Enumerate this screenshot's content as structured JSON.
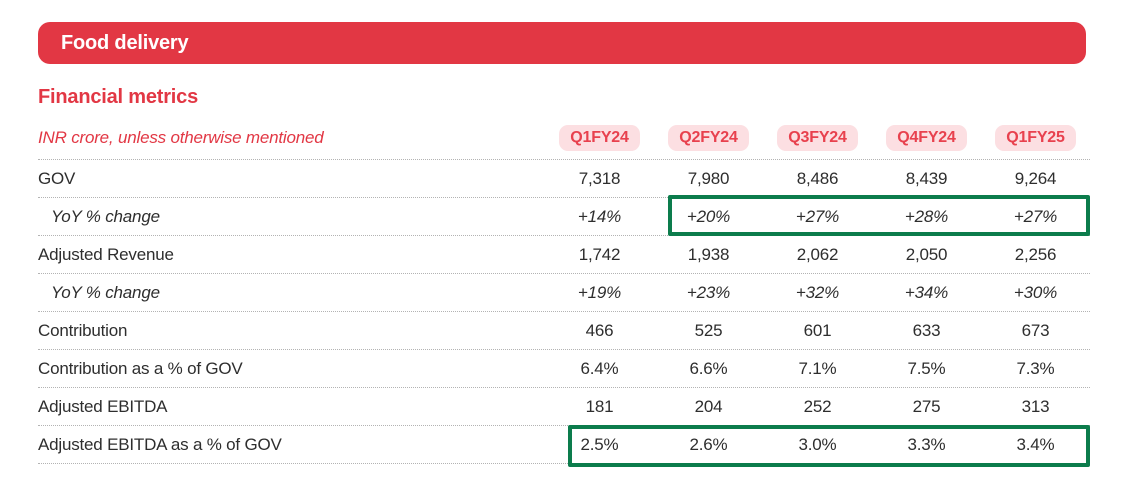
{
  "banner": {
    "title": "Food delivery"
  },
  "section": {
    "title": "Financial metrics",
    "subtitle": "INR crore, unless otherwise mentioned"
  },
  "table": {
    "columns": [
      "Q1FY24",
      "Q2FY24",
      "Q3FY24",
      "Q4FY24",
      "Q1FY25"
    ],
    "rows": [
      {
        "label": "GOV",
        "values": [
          "7,318",
          "7,980",
          "8,486",
          "8,439",
          "9,264"
        ]
      },
      {
        "label": "YoY % change",
        "values": [
          "+14%",
          "+20%",
          "+27%",
          "+28%",
          "+27%"
        ]
      },
      {
        "label": "Adjusted Revenue",
        "values": [
          "1,742",
          "1,938",
          "2,062",
          "2,050",
          "2,256"
        ]
      },
      {
        "label": "YoY % change",
        "values": [
          "+19%",
          "+23%",
          "+32%",
          "+34%",
          "+30%"
        ]
      },
      {
        "label": "Contribution",
        "values": [
          "466",
          "525",
          "601",
          "633",
          "673"
        ]
      },
      {
        "label": "Contribution as a % of GOV",
        "values": [
          "6.4%",
          "6.6%",
          "7.1%",
          "7.5%",
          "7.3%"
        ]
      },
      {
        "label": "Adjusted EBITDA",
        "values": [
          "181",
          "204",
          "252",
          "275",
          "313"
        ]
      },
      {
        "label": "Adjusted EBITDA as a % of GOV",
        "values": [
          "2.5%",
          "2.6%",
          "3.0%",
          "3.3%",
          "3.4%"
        ]
      }
    ],
    "highlights": [
      {
        "row_label": "YoY % change (GOV)",
        "columns_covered": [
          "Q2FY24",
          "Q3FY24",
          "Q4FY24",
          "Q1FY25"
        ]
      },
      {
        "row_label": "Adjusted EBITDA as a % of GOV",
        "columns_covered": [
          "Q1FY24",
          "Q2FY24",
          "Q3FY24",
          "Q4FY24",
          "Q1FY25"
        ]
      }
    ]
  },
  "colors": {
    "brand_red": "#e23744",
    "pill_bg": "#fcdfe2",
    "pill_text": "#e8414e",
    "text_dark": "#2e2e2e",
    "divider": "#b3b3b3",
    "highlight_green": "#0c7c4c",
    "page_bg": "#ffffff"
  }
}
